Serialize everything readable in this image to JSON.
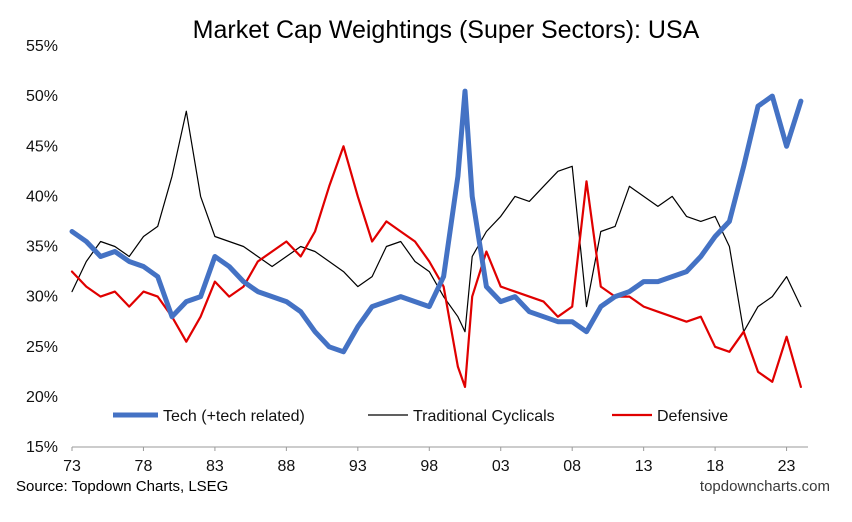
{
  "chart_data": {
    "type": "line",
    "title": "Market Cap Weightings (Super Sectors): USA",
    "xlabel": "",
    "ylabel": "",
    "x_tick_labels": [
      "73",
      "78",
      "83",
      "88",
      "93",
      "98",
      "03",
      "08",
      "13",
      "18",
      "23"
    ],
    "y_tick_labels": [
      "15%",
      "20%",
      "25%",
      "30%",
      "35%",
      "40%",
      "45%",
      "50%",
      "55%"
    ],
    "xlim": [
      1973,
      2024.5
    ],
    "ylim": [
      15,
      55
    ],
    "legend_position": "bottom-inside",
    "x": [
      1973,
      1974,
      1975,
      1976,
      1977,
      1978,
      1979,
      1980,
      1981,
      1982,
      1983,
      1984,
      1985,
      1986,
      1987,
      1988,
      1989,
      1990,
      1991,
      1992,
      1993,
      1994,
      1995,
      1996,
      1997,
      1998,
      1999,
      2000,
      2000.5,
      2001,
      2002,
      2003,
      2004,
      2005,
      2006,
      2007,
      2008,
      2009,
      2010,
      2011,
      2012,
      2013,
      2014,
      2015,
      2016,
      2017,
      2018,
      2019,
      2020,
      2021,
      2022,
      2023,
      2024
    ],
    "series": [
      {
        "name": "Tech (+tech related)",
        "color": "#4472c4",
        "values": [
          36.5,
          35.5,
          34.0,
          34.5,
          33.5,
          33.0,
          32.0,
          28.0,
          29.5,
          30.0,
          34.0,
          33.0,
          31.5,
          30.5,
          30.0,
          29.5,
          28.5,
          26.5,
          25.0,
          24.5,
          27.0,
          29.0,
          29.5,
          30.0,
          29.5,
          29.0,
          32.0,
          42.0,
          50.5,
          40.0,
          31.0,
          29.5,
          30.0,
          28.5,
          28.0,
          27.5,
          27.5,
          26.5,
          29.0,
          30.0,
          30.5,
          31.5,
          31.5,
          32.0,
          32.5,
          34.0,
          36.0,
          37.5,
          43.0,
          49.0,
          50.0,
          45.0,
          49.5
        ]
      },
      {
        "name": "Traditional Cyclicals",
        "color": "#000000",
        "values": [
          30.5,
          33.5,
          35.5,
          35.0,
          34.0,
          36.0,
          37.0,
          42.0,
          48.5,
          40.0,
          36.0,
          35.5,
          35.0,
          34.0,
          33.0,
          34.0,
          35.0,
          34.5,
          33.5,
          32.5,
          31.0,
          32.0,
          35.0,
          35.5,
          33.5,
          32.5,
          30.0,
          28.0,
          26.5,
          34.0,
          36.5,
          38.0,
          40.0,
          39.5,
          41.0,
          42.5,
          43.0,
          29.0,
          36.5,
          37.0,
          41.0,
          40.0,
          39.0,
          40.0,
          38.0,
          37.5,
          38.0,
          35.0,
          26.5,
          29.0,
          30.0,
          32.0,
          29.0
        ]
      },
      {
        "name": "Defensive",
        "color": "#e00000",
        "values": [
          32.5,
          31.0,
          30.0,
          30.5,
          29.0,
          30.5,
          30.0,
          28.0,
          25.5,
          28.0,
          31.5,
          30.0,
          31.0,
          33.5,
          34.5,
          35.5,
          34.0,
          36.5,
          41.0,
          45.0,
          40.0,
          35.5,
          37.5,
          36.5,
          35.5,
          33.5,
          31.0,
          23.0,
          21.0,
          30.0,
          34.5,
          31.0,
          30.5,
          30.0,
          29.5,
          28.0,
          29.0,
          41.5,
          31.0,
          30.0,
          30.0,
          29.0,
          28.5,
          28.0,
          27.5,
          28.0,
          25.0,
          24.5,
          26.5,
          22.5,
          21.5,
          26.0,
          21.0
        ]
      }
    ]
  },
  "source_label": "Source: Topdown Charts, LSEG",
  "watermark": "topdowncharts.com"
}
